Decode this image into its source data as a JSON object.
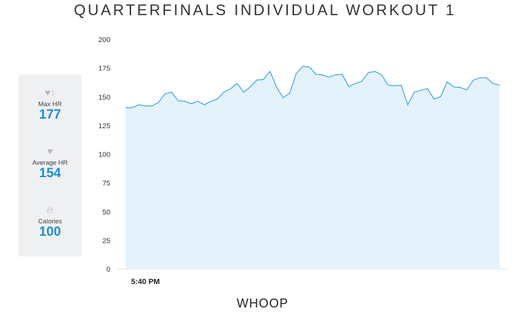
{
  "title": "QUARTERFINALS INDIVIDUAL WORKOUT 1",
  "stats": [
    {
      "icon": "heart-up-icon",
      "label": "Max HR",
      "value": "177"
    },
    {
      "icon": "heart-icon",
      "label": "Average HR",
      "value": "154"
    },
    {
      "icon": "flame-icon",
      "label": "Calories",
      "value": "100"
    }
  ],
  "logo": "WHOOP",
  "colors": {
    "line": "#3aa3dc",
    "fill": "#e3f2fb",
    "accent": "#1b8fd8"
  },
  "chart_data": {
    "type": "area",
    "title": "",
    "xlabel": "",
    "ylabel": "",
    "ylim": [
      0,
      200
    ],
    "yticks": [
      0,
      25,
      50,
      75,
      100,
      125,
      150,
      175,
      200
    ],
    "xtick_labels": [
      "5:40 PM"
    ],
    "grid": false,
    "values": [
      140.5,
      140.5,
      143,
      142,
      142,
      145,
      152.5,
      154,
      146.5,
      146,
      144,
      146,
      143,
      146,
      148,
      154,
      157,
      161.5,
      154,
      158.5,
      164.5,
      165,
      172,
      158.5,
      149,
      153,
      170,
      176.5,
      176,
      169.5,
      169,
      167,
      169,
      169.5,
      159,
      161.5,
      163.5,
      171,
      172,
      169,
      160,
      159.5,
      160,
      143,
      154,
      155.5,
      157,
      148,
      150,
      163,
      158.5,
      158,
      156,
      164.5,
      166.5,
      166.5,
      161.5,
      160
    ]
  }
}
